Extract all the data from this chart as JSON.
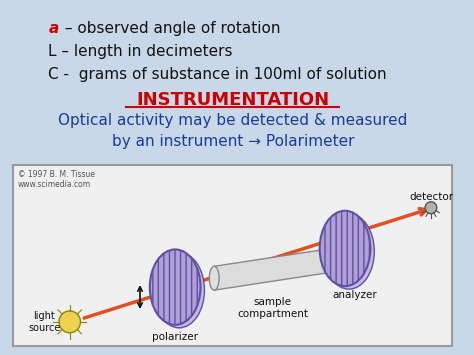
{
  "bg_color": "#c8d8e8",
  "title_text": "INSTRUMENTATION",
  "title_color": "#cc0000",
  "line1_a": "a",
  "line1_rest": " – observed angle of rotation",
  "line2": "L – length in decimeters",
  "line3": "C -  grams of substance in 100ml of solution",
  "body_text": "Optical activity may be detected & measured\nby an instrument → Polarimeter",
  "body_color": "#1a3a9e",
  "copyright": "© 1997 B. M. Tissue\nwww.scimedia.com",
  "label_light": "light\nsource",
  "label_polarizer": "polarizer",
  "label_sample": "sample\ncompartment",
  "label_analyzer": "analyzer",
  "label_detector": "detector",
  "arrow_color": "#e05020",
  "disk_fill": "#b0a0d8",
  "disk_edge": "#6050a0",
  "hatch": "|||",
  "text_color": "#111111",
  "box_bg": "#f0f0f0",
  "underline_color": "#cc0000"
}
